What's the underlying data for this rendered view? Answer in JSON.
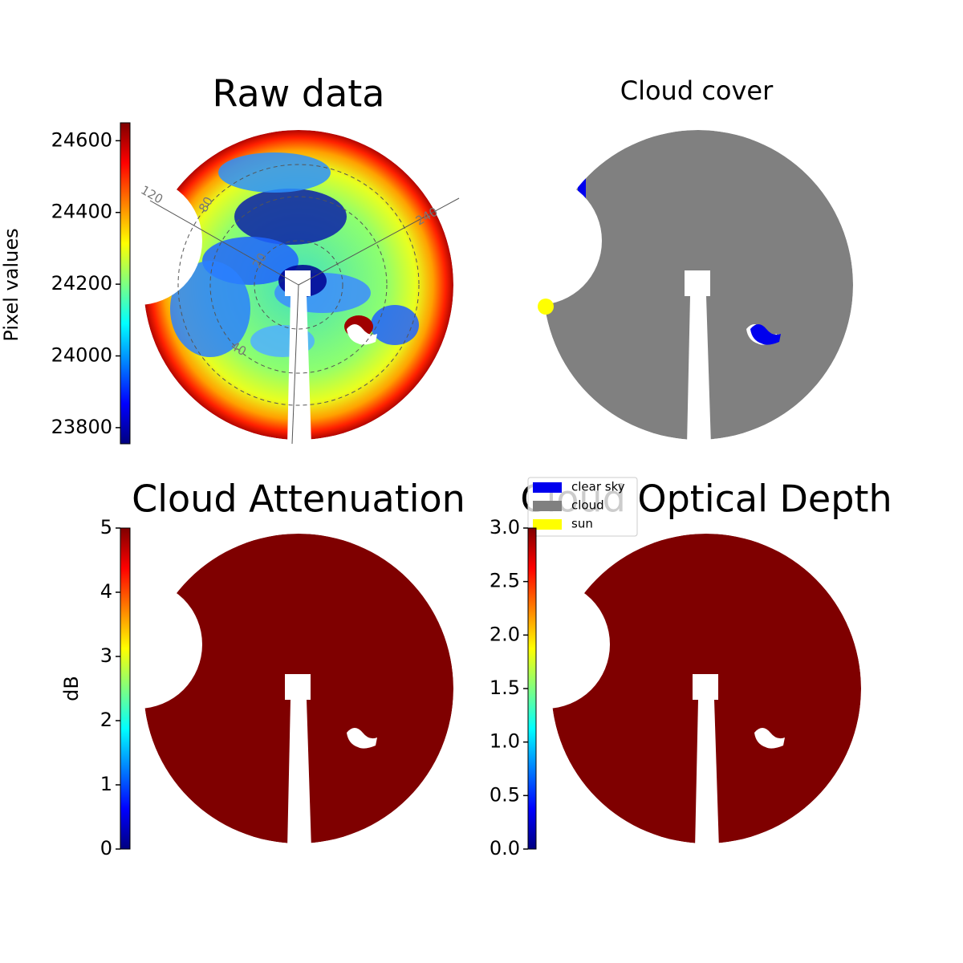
{
  "chart_data": [
    {
      "type": "image",
      "title": "Raw data",
      "colorbar_label": "Pixel values",
      "colormap": "jet",
      "clim": [
        23755,
        24650
      ],
      "cticks": [
        23800,
        24000,
        24200,
        24400,
        24600
      ],
      "azimuth_labels": [
        120,
        240
      ],
      "radius_labels": [
        80,
        20,
        40
      ]
    },
    {
      "type": "classes",
      "title": "Cloud cover",
      "legend": [
        {
          "name": "clear sky",
          "color": "#0000ee"
        },
        {
          "name": "cloud",
          "color": "#808080"
        },
        {
          "name": "sun",
          "color": "#ffff00"
        }
      ]
    },
    {
      "type": "image",
      "title": "Cloud Attenuation",
      "colorbar_label": "dB",
      "colormap": "jet",
      "fill_color": "#7f0000",
      "clim": [
        0,
        5
      ],
      "cticks": [
        0,
        1,
        2,
        3,
        4,
        5
      ]
    },
    {
      "type": "image",
      "title": "Cloud Optical Depth",
      "colormap": "jet",
      "fill_color": "#7f0000",
      "clim": [
        0,
        3
      ],
      "cticks": [
        {
          "value": 0,
          "label": "0.0"
        },
        0.5,
        {
          "value": 1,
          "label": "1.0"
        },
        1.5,
        {
          "value": 2,
          "label": "2.0"
        },
        2.5,
        {
          "value": 3,
          "label": "3.0"
        }
      ]
    }
  ]
}
